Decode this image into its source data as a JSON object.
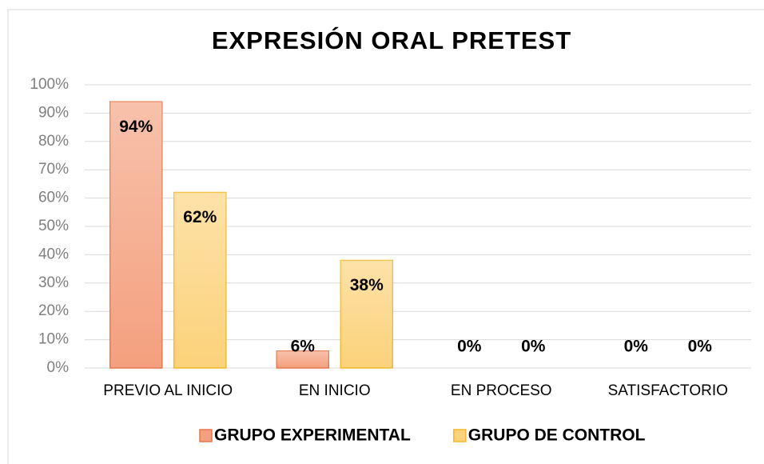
{
  "chart_data": {
    "type": "bar",
    "title": "EXPRESIÓN ORAL PRETEST",
    "categories": [
      "PREVIO AL INICIO",
      "EN INICIO",
      "EN PROCESO",
      "SATISFACTORIO"
    ],
    "series": [
      {
        "name": "GRUPO EXPERIMENTAL",
        "color": "#f4a07e",
        "stroke": "#e8774a",
        "values": [
          94,
          6,
          0,
          0
        ],
        "value_labels": [
          "94%",
          "6%",
          "0%",
          "0%"
        ]
      },
      {
        "name": "GRUPO DE CONTROL",
        "color": "#fcd27a",
        "stroke": "#f2b928",
        "values": [
          62,
          38,
          0,
          0
        ],
        "value_labels": [
          "62%",
          "38%",
          "0%",
          "0%"
        ]
      }
    ],
    "ylim": [
      0,
      100
    ],
    "yticks": [
      {
        "value": 0,
        "label": "0%"
      },
      {
        "value": 10,
        "label": "10%"
      },
      {
        "value": 20,
        "label": "20%"
      },
      {
        "value": 30,
        "label": "30%"
      },
      {
        "value": 40,
        "label": "40%"
      },
      {
        "value": 50,
        "label": "50%"
      },
      {
        "value": 60,
        "label": "60%"
      },
      {
        "value": 70,
        "label": "70%"
      },
      {
        "value": 80,
        "label": "80%"
      },
      {
        "value": 90,
        "label": "90%"
      },
      {
        "value": 100,
        "label": "100%"
      }
    ],
    "grid": true,
    "legend": "bottom"
  }
}
